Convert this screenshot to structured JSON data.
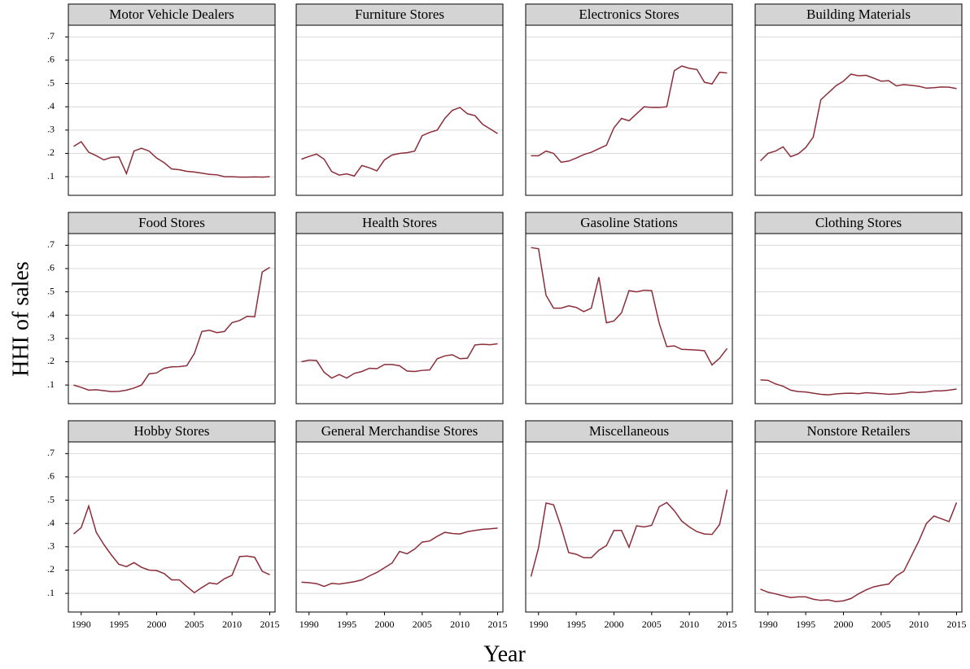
{
  "chart_data": {
    "type": "line",
    "ylabel": "HHI of sales",
    "xlabel": "Year",
    "color": "#8b2e3a",
    "grid": true,
    "x": [
      1989,
      1990,
      1991,
      1992,
      1993,
      1994,
      1995,
      1996,
      1997,
      1998,
      1999,
      2000,
      2001,
      2002,
      2003,
      2004,
      2005,
      2006,
      2007,
      2008,
      2009,
      2010,
      2011,
      2012,
      2013,
      2014,
      2015
    ],
    "xlim": [
      1988.3,
      2015.7
    ],
    "xticks": [
      1990,
      1995,
      2000,
      2005,
      2010,
      2015
    ],
    "ylim": [
      0.02,
      0.75
    ],
    "yticks": [
      {
        "value": 0.1,
        "label": ".1"
      },
      {
        "value": 0.2,
        "label": ".2"
      },
      {
        "value": 0.3,
        "label": ".3"
      },
      {
        "value": 0.4,
        "label": ".4"
      },
      {
        "value": 0.5,
        "label": ".5"
      },
      {
        "value": 0.6,
        "label": ".6"
      },
      {
        "value": 0.7,
        "label": ".7"
      }
    ],
    "panels": [
      {
        "title": "Motor Vehicle Dealers",
        "values": [
          0.23,
          0.25,
          0.205,
          0.19,
          0.172,
          0.183,
          0.185,
          0.113,
          0.21,
          0.222,
          0.21,
          0.18,
          0.16,
          0.133,
          0.13,
          0.123,
          0.12,
          0.115,
          0.11,
          0.108,
          0.1,
          0.1,
          0.098,
          0.098,
          0.099,
          0.098,
          0.1
        ]
      },
      {
        "title": "Furniture Stores",
        "values": [
          0.175,
          0.187,
          0.197,
          0.175,
          0.122,
          0.107,
          0.112,
          0.103,
          0.148,
          0.138,
          0.125,
          0.172,
          0.193,
          0.2,
          0.203,
          0.21,
          0.276,
          0.29,
          0.3,
          0.35,
          0.385,
          0.397,
          0.37,
          0.362,
          0.325,
          0.305,
          0.285
        ]
      },
      {
        "title": "Electronics Stores",
        "values": [
          0.19,
          0.19,
          0.21,
          0.2,
          0.162,
          0.167,
          0.18,
          0.195,
          0.205,
          0.22,
          0.235,
          0.31,
          0.35,
          0.34,
          0.37,
          0.4,
          0.397,
          0.397,
          0.4,
          0.555,
          0.575,
          0.565,
          0.56,
          0.505,
          0.498,
          0.548,
          0.545
        ]
      },
      {
        "title": "Building Materials",
        "values": [
          0.168,
          0.2,
          0.21,
          0.228,
          0.186,
          0.198,
          0.225,
          0.27,
          0.43,
          0.46,
          0.49,
          0.51,
          0.54,
          0.533,
          0.535,
          0.523,
          0.51,
          0.512,
          0.49,
          0.495,
          0.492,
          0.488,
          0.48,
          0.482,
          0.485,
          0.484,
          0.478
        ]
      },
      {
        "title": "Food Stores",
        "values": [
          0.1,
          0.09,
          0.078,
          0.08,
          0.076,
          0.072,
          0.073,
          0.078,
          0.087,
          0.1,
          0.148,
          0.152,
          0.172,
          0.178,
          0.179,
          0.183,
          0.235,
          0.33,
          0.335,
          0.325,
          0.33,
          0.368,
          0.377,
          0.395,
          0.393,
          0.585,
          0.605
        ]
      },
      {
        "title": "Health Stores",
        "values": [
          0.2,
          0.207,
          0.205,
          0.155,
          0.13,
          0.145,
          0.13,
          0.15,
          0.158,
          0.172,
          0.17,
          0.188,
          0.188,
          0.183,
          0.16,
          0.158,
          0.163,
          0.165,
          0.213,
          0.225,
          0.23,
          0.213,
          0.215,
          0.272,
          0.275,
          0.273,
          0.277
        ]
      },
      {
        "title": "Gasoline Stations",
        "values": [
          0.69,
          0.685,
          0.485,
          0.43,
          0.43,
          0.44,
          0.433,
          0.415,
          0.43,
          0.563,
          0.367,
          0.375,
          0.41,
          0.505,
          0.5,
          0.507,
          0.505,
          0.365,
          0.265,
          0.268,
          0.253,
          0.252,
          0.25,
          0.247,
          0.186,
          0.215,
          0.257
        ]
      },
      {
        "title": "Clothing Stores",
        "values": [
          0.122,
          0.12,
          0.105,
          0.095,
          0.078,
          0.072,
          0.07,
          0.065,
          0.06,
          0.058,
          0.062,
          0.064,
          0.065,
          0.063,
          0.067,
          0.065,
          0.063,
          0.06,
          0.062,
          0.065,
          0.07,
          0.068,
          0.07,
          0.075,
          0.075,
          0.078,
          0.083
        ]
      },
      {
        "title": "Hobby Stores",
        "values": [
          0.355,
          0.382,
          0.475,
          0.362,
          0.31,
          0.265,
          0.225,
          0.215,
          0.232,
          0.212,
          0.2,
          0.198,
          0.185,
          0.158,
          0.158,
          0.13,
          0.103,
          0.125,
          0.145,
          0.14,
          0.163,
          0.178,
          0.258,
          0.26,
          0.255,
          0.195,
          0.18
        ]
      },
      {
        "title": "General Merchandise Stores",
        "values": [
          0.148,
          0.146,
          0.142,
          0.13,
          0.143,
          0.14,
          0.145,
          0.15,
          0.158,
          0.175,
          0.19,
          0.21,
          0.23,
          0.28,
          0.27,
          0.29,
          0.32,
          0.325,
          0.345,
          0.362,
          0.357,
          0.355,
          0.365,
          0.37,
          0.375,
          0.377,
          0.38
        ]
      },
      {
        "title": "Miscellaneous",
        "values": [
          0.172,
          0.295,
          0.488,
          0.48,
          0.385,
          0.275,
          0.268,
          0.253,
          0.253,
          0.285,
          0.305,
          0.37,
          0.37,
          0.298,
          0.39,
          0.385,
          0.392,
          0.472,
          0.49,
          0.455,
          0.41,
          0.385,
          0.365,
          0.355,
          0.353,
          0.395,
          0.545
        ]
      },
      {
        "title": "Nonstore Retailers",
        "values": [
          0.118,
          0.105,
          0.098,
          0.09,
          0.082,
          0.085,
          0.085,
          0.075,
          0.07,
          0.072,
          0.065,
          0.068,
          0.078,
          0.098,
          0.115,
          0.128,
          0.135,
          0.14,
          0.175,
          0.195,
          0.26,
          0.325,
          0.4,
          0.432,
          0.42,
          0.408,
          0.49
        ]
      }
    ]
  }
}
